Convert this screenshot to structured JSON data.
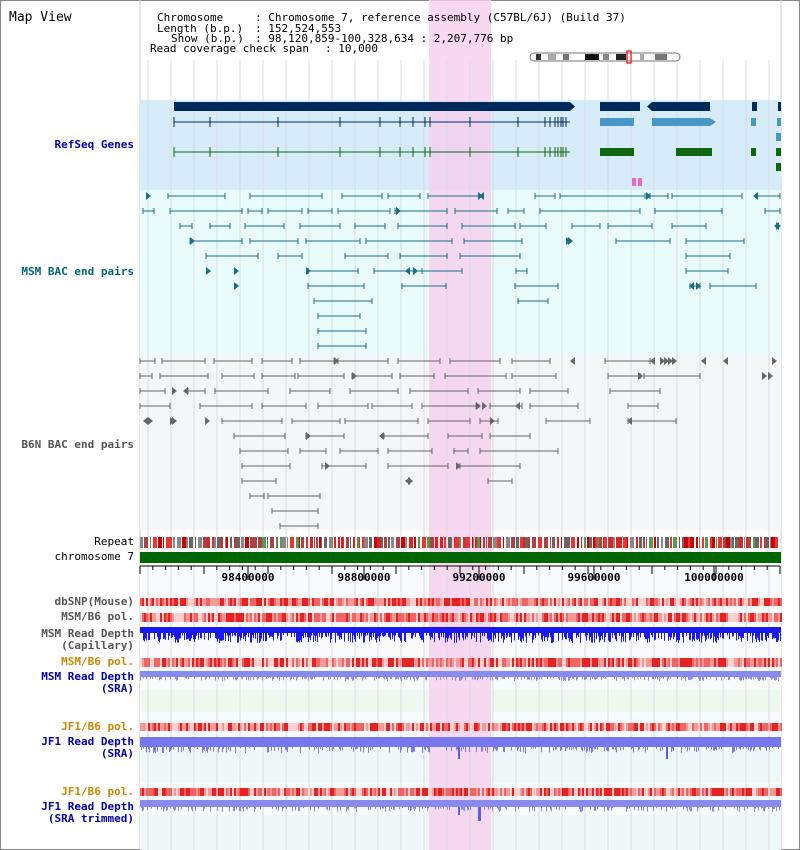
{
  "app_title": "Map View",
  "info": {
    "chromosome_key": "Chromosome",
    "chromosome_value": ": Chromosome 7, reference assembly (C57BL/6J) (Build 37)",
    "length_key": "Length (b.p.)",
    "length_value": ": 152,524,553",
    "show_key": "Show (b.p.)",
    "show_value": ": 98,120,859-100,328,634 : 2,207,776 bp",
    "span_key": "Read coverage check span",
    "span_value": ": 10,000"
  },
  "tracks": {
    "refseq": "RefSeq Genes",
    "msm_bac": "MSM BAC end pairs",
    "b6n_bac": "B6N BAC end pairs",
    "repeat": "Repeat",
    "chromosome": "chromosome 7",
    "dbsnp": "dbSNP(Mouse)",
    "msm_b6_pol": "MSM/B6 pol.",
    "msm_depth_cap": "MSM Read Depth\n(Capillary)",
    "msm_b6_pol_2": "MSM/B6 pol.",
    "msm_depth_sra": "MSM Read Depth\n(SRA)",
    "jf1_b6_pol": "JF1/B6 pol.",
    "jf1_depth_sra": "JF1 Read Depth\n(SRA)",
    "jf1_b6_pol_2": "JF1/B6 pol.",
    "jf1_depth_trim": "JF1 Read Depth\n(SRA trimmed)"
  },
  "axis": {
    "ticks": [
      "98400000",
      "98800000",
      "99200000",
      "99600000",
      "100000000"
    ]
  },
  "colors": {
    "highlight": "#f6d0ee",
    "refseq_bg": "#d6ecf8",
    "msm_bg": "#e9fbfa",
    "b6n_bg": "#f4f6f8",
    "gene_dark": "#002a5c",
    "gene_mid": "#4a96c4",
    "gene_green": "#116611",
    "msm_pair": "#1a6e88",
    "b6n_pair": "#666666",
    "chromosome_bar": "#006600",
    "depth_capillary": "#1a1aee",
    "depth_sra": "#8a8aee",
    "label_blue": "#0000aa",
    "label_orange": "#cc8800",
    "label_teal": "#006677"
  }
}
